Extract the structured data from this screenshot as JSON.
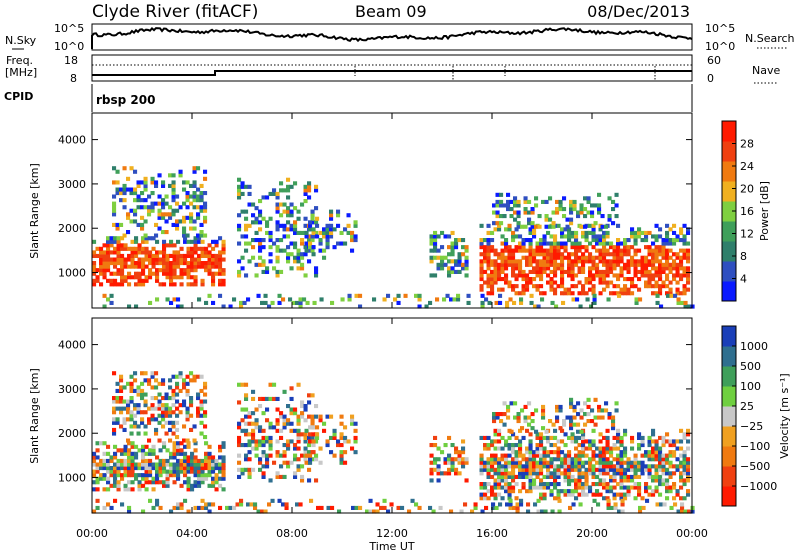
{
  "header": {
    "station": "Clyde River (fitACF)",
    "beam": "Beam 09",
    "date": "08/Dec/2013"
  },
  "noise_panel": {
    "left_label": "N.Sky",
    "right_label": "N.Search",
    "tick_top": "10^5",
    "tick_bottom": "10^0",
    "right_tick_top": "10^5",
    "right_tick_bottom": "10^0"
  },
  "freq_panel": {
    "left_label_1": "Freq.",
    "left_label_2": "[MHz]",
    "tick_top": "18",
    "tick_bottom": "8",
    "right_label": "Nave",
    "right_tick_top": "60",
    "right_tick_bottom": "0"
  },
  "cpid": {
    "label": "CPID",
    "value": "rbsp 200"
  },
  "colors": {
    "power": [
      "#0a1aff",
      "#2f4fc0",
      "#2f7f6b",
      "#3f9f5a",
      "#7fcf40",
      "#f0b020",
      "#f07a10",
      "#f04010",
      "#ff1a00"
    ],
    "velocity": [
      "#ff1a00",
      "#f04010",
      "#f07a10",
      "#f0a020",
      "#c8c8c8",
      "#6fcf40",
      "#3f9f5a",
      "#2f6f8f",
      "#1a3fb8"
    ]
  },
  "chart_data": [
    {
      "type": "heatmap",
      "name": "power",
      "ylabel": "Slant Range [km]",
      "ylim": [
        200,
        4600
      ],
      "yticks": [
        "1000",
        "2000",
        "3000",
        "4000"
      ],
      "xlim": [
        0,
        24
      ],
      "colorbar": {
        "label": "Power [dB]",
        "range": [
          0,
          32
        ],
        "ticks": [
          "4",
          "8",
          "12",
          "16",
          "20",
          "24",
          "28"
        ]
      }
    },
    {
      "type": "heatmap",
      "name": "velocity",
      "ylabel": "Slant Range [km]",
      "ylim": [
        200,
        4600
      ],
      "yticks": [
        "1000",
        "2000",
        "3000",
        "4000"
      ],
      "xlim": [
        0,
        24
      ],
      "xticks": [
        "00:00",
        "04:00",
        "08:00",
        "12:00",
        "16:00",
        "20:00",
        "00:00"
      ],
      "xlabel": "Time UT",
      "colorbar": {
        "label": "Velocity [m s⁻¹]",
        "ticks": [
          "1000",
          "500",
          "100",
          "25",
          "−25",
          "−100",
          "−500",
          "−1000"
        ]
      }
    }
  ]
}
